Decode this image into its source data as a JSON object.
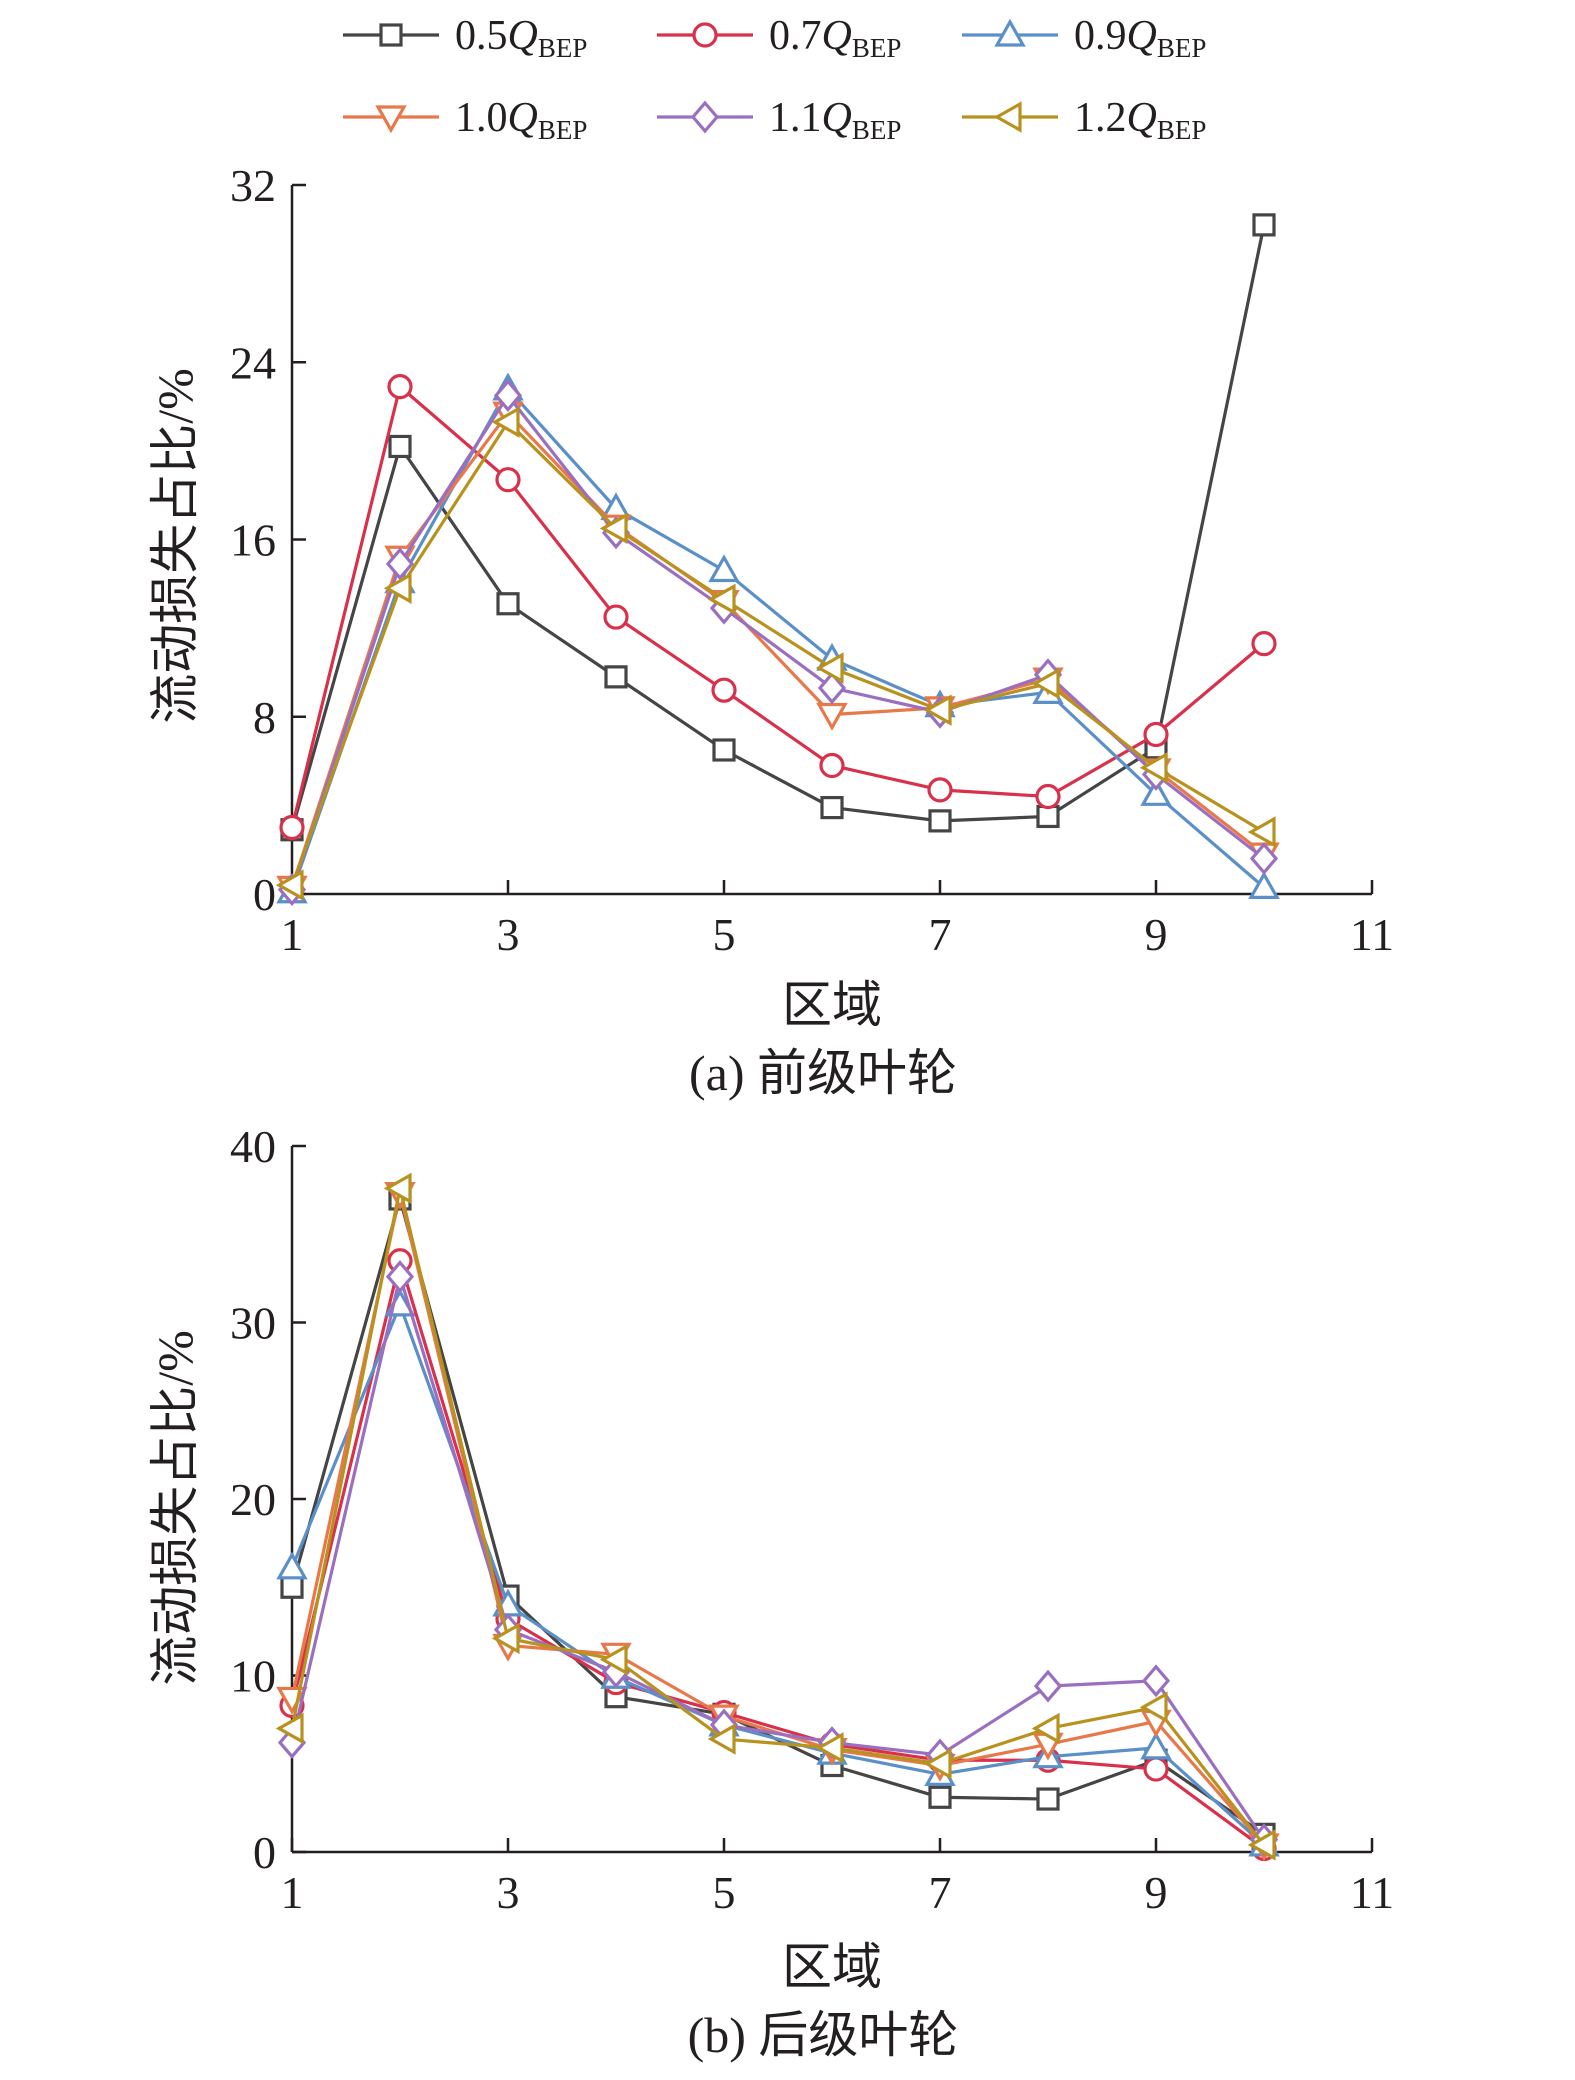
{
  "legend": [
    {
      "coef": "0.5",
      "q": "Q",
      "sub": "BEP",
      "color": "#454545",
      "marker": "square"
    },
    {
      "coef": "0.7",
      "q": "Q",
      "sub": "BEP",
      "color": "#d9304b",
      "marker": "circle"
    },
    {
      "coef": "0.9",
      "q": "Q",
      "sub": "BEP",
      "color": "#5b8fc8",
      "marker": "triangle-up"
    },
    {
      "coef": "1.0",
      "q": "Q",
      "sub": "BEP",
      "color": "#e8784a",
      "marker": "triangle-down"
    },
    {
      "coef": "1.1",
      "q": "Q",
      "sub": "BEP",
      "color": "#9b6fc0",
      "marker": "diamond"
    },
    {
      "coef": "1.2",
      "q": "Q",
      "sub": "BEP",
      "color": "#b8921e",
      "marker": "triangle-left"
    }
  ],
  "chart_data": [
    {
      "type": "line",
      "caption": "(a) 前级叶轮",
      "xlabel": "区域",
      "ylabel": "流动损失占比/%",
      "xlim": [
        1,
        11
      ],
      "ylim": [
        0,
        32
      ],
      "xticks": [
        1,
        3,
        5,
        7,
        9,
        11
      ],
      "yticks": [
        0,
        8,
        16,
        24,
        32
      ],
      "grid": false,
      "x": [
        1,
        2,
        3,
        4,
        5,
        6,
        7,
        8,
        9,
        10
      ],
      "series": [
        {
          "name": "0.5QBEP",
          "values": [
            2.9,
            20.2,
            13.1,
            9.8,
            6.5,
            3.9,
            3.3,
            3.5,
            6.6,
            30.2
          ]
        },
        {
          "name": "0.7QBEP",
          "values": [
            3.0,
            22.9,
            18.7,
            12.5,
            9.2,
            5.8,
            4.7,
            4.4,
            7.2,
            11.3
          ]
        },
        {
          "name": "0.9QBEP",
          "values": [
            0.1,
            14.1,
            22.8,
            17.4,
            14.6,
            10.6,
            8.5,
            9.1,
            4.5,
            0.3
          ]
        },
        {
          "name": "1.0QBEP",
          "values": [
            0.3,
            15.2,
            21.7,
            16.6,
            13.2,
            8.1,
            8.4,
            9.7,
            5.6,
            1.8
          ]
        },
        {
          "name": "1.1QBEP",
          "values": [
            0.2,
            14.9,
            22.5,
            16.3,
            12.9,
            9.3,
            8.2,
            9.9,
            5.4,
            1.6
          ]
        },
        {
          "name": "1.2QBEP",
          "values": [
            0.4,
            13.8,
            21.3,
            16.5,
            13.3,
            10.2,
            8.3,
            9.5,
            5.7,
            2.8
          ]
        }
      ]
    },
    {
      "type": "line",
      "caption": "(b) 后级叶轮",
      "xlabel": "区域",
      "ylabel": "流动损失占比/%",
      "xlim": [
        1,
        11
      ],
      "ylim": [
        0,
        40
      ],
      "xticks": [
        1,
        3,
        5,
        7,
        9,
        11
      ],
      "yticks": [
        0,
        10,
        20,
        30,
        40
      ],
      "grid": false,
      "x": [
        1,
        2,
        3,
        4,
        5,
        6,
        7,
        8,
        9,
        10
      ],
      "series": [
        {
          "name": "0.5QBEP",
          "values": [
            15.0,
            37.0,
            14.5,
            8.8,
            7.8,
            4.9,
            3.1,
            3.0,
            5.2,
            1.0
          ]
        },
        {
          "name": "0.7QBEP",
          "values": [
            8.3,
            33.5,
            13.2,
            9.6,
            7.9,
            6.1,
            5.2,
            5.2,
            4.7,
            0.2
          ]
        },
        {
          "name": "0.9QBEP",
          "values": [
            16.1,
            31.0,
            14.0,
            9.9,
            7.2,
            5.6,
            4.4,
            5.4,
            5.9,
            0.4
          ]
        },
        {
          "name": "1.0QBEP",
          "values": [
            8.7,
            37.3,
            11.7,
            11.2,
            7.7,
            5.8,
            4.9,
            6.1,
            7.4,
            0.4
          ]
        },
        {
          "name": "1.1QBEP",
          "values": [
            6.2,
            32.6,
            12.6,
            10.2,
            7.2,
            6.2,
            5.5,
            9.4,
            9.7,
            0.7
          ]
        },
        {
          "name": "1.2QBEP",
          "values": [
            7.0,
            37.6,
            12.1,
            10.9,
            6.4,
            5.9,
            5.0,
            7.0,
            8.2,
            0.4
          ]
        }
      ]
    }
  ]
}
